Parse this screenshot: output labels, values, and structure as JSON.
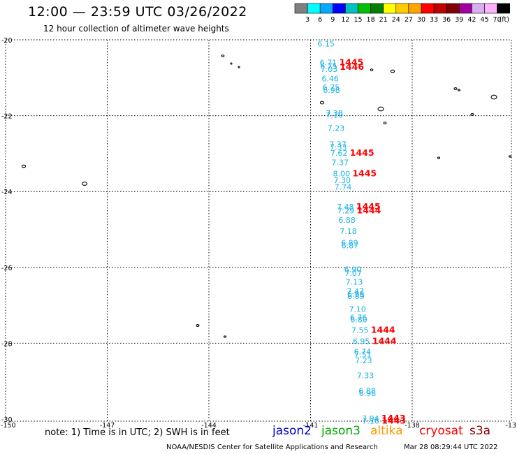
{
  "header": {
    "title": "12:00 — 23:59 UTC 03/26/2022",
    "subtitle": "12 hour collection of altimeter wave heights"
  },
  "colorbar": {
    "labels": [
      "3",
      "6",
      "9",
      "12",
      "15",
      "18",
      "21",
      "24",
      "27",
      "30",
      "33",
      "36",
      "39",
      "42",
      "45",
      "70"
    ],
    "unit": "(ft)",
    "colors": [
      "#808080",
      "#00ffff",
      "#00aaff",
      "#0000ff",
      "#00c0c0",
      "#00c000",
      "#008000",
      "#ffff00",
      "#ffcc00",
      "#ffa500",
      "#ff0000",
      "#c00000",
      "#800000",
      "#a000a0",
      "#d8b0f0",
      "#ffb0ff",
      "#000000"
    ]
  },
  "map": {
    "lat_labels": [
      "-20",
      "-22",
      "-24",
      "-26",
      "-28",
      "-30"
    ],
    "lon_labels": [
      "-150",
      "-147",
      "-144",
      "-141",
      "-138",
      "-13"
    ]
  },
  "observations": [
    {
      "v": "6.15",
      "lat": -20.1
    },
    {
      "v": "6.71",
      "lat": -20.6
    },
    {
      "v": "6.75",
      "lat": -20.69
    },
    {
      "v": "7.03",
      "lat": -20.77
    },
    {
      "v": "6.46",
      "lat": -21.02
    },
    {
      "v": "6.75",
      "lat": -21.25
    },
    {
      "v": "6.98",
      "lat": -21.33
    },
    {
      "v": "7.30",
      "lat": -21.93
    },
    {
      "v": "7.10",
      "lat": -21.98
    },
    {
      "v": "7.23",
      "lat": -22.33
    },
    {
      "v": "7.37",
      "lat": -22.75
    },
    {
      "v": "7.33",
      "lat": -22.83
    },
    {
      "v": "7.62",
      "lat": -22.98
    },
    {
      "v": "7.37",
      "lat": -23.23
    },
    {
      "v": "8.00",
      "lat": -23.53
    },
    {
      "v": "7.30",
      "lat": -23.7
    },
    {
      "v": "7.74",
      "lat": -23.88
    },
    {
      "v": "7.48",
      "lat": -24.4
    },
    {
      "v": "7.29",
      "lat": -24.5
    },
    {
      "v": "6.88",
      "lat": -24.75
    },
    {
      "v": "7.18",
      "lat": -25.05
    },
    {
      "v": "6.89",
      "lat": -25.35
    },
    {
      "v": "6.87",
      "lat": -25.42
    },
    {
      "v": "6.90",
      "lat": -26.05
    },
    {
      "v": "7.07",
      "lat": -26.15
    },
    {
      "v": "7.13",
      "lat": -26.38
    },
    {
      "v": "7.47",
      "lat": -26.63
    },
    {
      "v": "6.99",
      "lat": -26.7
    },
    {
      "v": "6.89",
      "lat": -26.76
    },
    {
      "v": "7.10",
      "lat": -27.1
    },
    {
      "v": "6.76",
      "lat": -27.32
    },
    {
      "v": "6.80",
      "lat": -27.38
    },
    {
      "v": "7.55",
      "lat": -27.65
    },
    {
      "v": "6.95",
      "lat": -27.95
    },
    {
      "v": "6.74",
      "lat": -28.22
    },
    {
      "v": "7.51",
      "lat": -28.3
    },
    {
      "v": "7.23",
      "lat": -28.45
    },
    {
      "v": "7.33",
      "lat": -28.85
    },
    {
      "v": "6.88",
      "lat": -29.25
    },
    {
      "v": "6.98",
      "lat": -29.32
    },
    {
      "v": "7.04",
      "lat": -29.98
    },
    {
      "v": "7.16",
      "lat": -30.05
    }
  ],
  "times": [
    {
      "t": "1445",
      "lat": -20.6
    },
    {
      "t": "1446",
      "lat": -20.72
    },
    {
      "t": "1445",
      "lat": -22.98
    },
    {
      "t": "1445",
      "lat": -23.53
    },
    {
      "t": "1445",
      "lat": -24.4
    },
    {
      "t": "1444",
      "lat": -24.5
    },
    {
      "t": "1444",
      "lat": -27.65
    },
    {
      "t": "1444",
      "lat": -27.95
    },
    {
      "t": "1443",
      "lat": -29.98
    },
    {
      "t": "1443",
      "lat": -30.05
    }
  ],
  "notes": {
    "text": "note:  1) Time is in UTC;  2) SWH is in feet"
  },
  "satellites": [
    {
      "name": "jason2",
      "color": "#0000cc"
    },
    {
      "name": "jason3",
      "color": "#00aa00"
    },
    {
      "name": "altika",
      "color": "#ff9900"
    },
    {
      "name": "cryosat",
      "color": "#ff0000"
    },
    {
      "name": "s3a",
      "color": "#8b0000"
    }
  ],
  "footer": {
    "credit": "NOAA/NESDIS Center for Satellite Applications and Research",
    "timestamp": "Mar 28 08:29:44 UTC 2022"
  }
}
